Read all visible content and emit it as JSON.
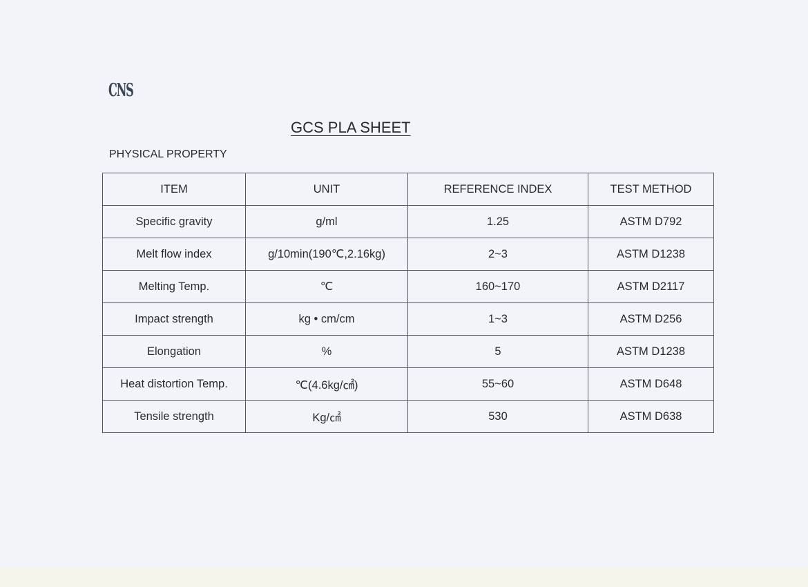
{
  "logo": "CNS",
  "title": "GCS PLA SHEET",
  "section": "PHYSICAL PROPERTY",
  "table": {
    "headers": [
      "ITEM",
      "UNIT",
      "REFERENCE INDEX",
      "TEST METHOD"
    ],
    "rows": [
      [
        "Specific gravity",
        "g/ml",
        "1.25",
        "ASTM D792"
      ],
      [
        "Melt flow index",
        "g/10min(190℃,2.16kg)",
        "2~3",
        "ASTM D1238"
      ],
      [
        "Melting Temp.",
        "℃",
        "160~170",
        "ASTM D2117"
      ],
      [
        "Impact strength",
        "kg • cm/cm",
        "1~3",
        "ASTM D256"
      ],
      [
        "Elongation",
        "%",
        "5",
        "ASTM D1238"
      ],
      [
        "Heat distortion Temp.",
        "℃(4.6kg/㎠)",
        "55~60",
        "ASTM D648"
      ],
      [
        "Tensile strength",
        "Kg/㎠",
        "530",
        "ASTM D638"
      ]
    ]
  }
}
